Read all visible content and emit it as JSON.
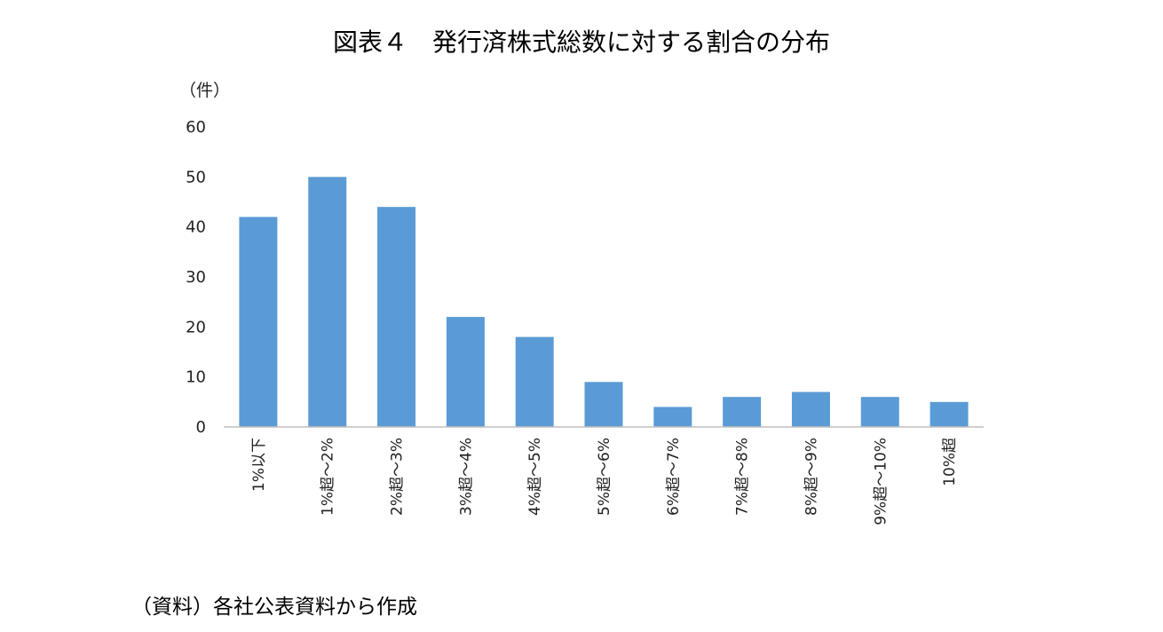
{
  "chart_data": {
    "type": "bar",
    "title": "図表４　発行済株式総数に対する割合の分布",
    "ylabel": "（件）",
    "xlabel": "",
    "categories": [
      "1%以下",
      "1%超～2%",
      "2%超～3%",
      "3%超～4%",
      "4%超～5%",
      "5%超～6%",
      "6%超～7%",
      "7%超～8%",
      "8%超～9%",
      "9%超～10%",
      "10%超"
    ],
    "values": [
      42,
      50,
      44,
      22,
      18,
      9,
      4,
      6,
      7,
      6,
      5
    ],
    "ylim": [
      0,
      60
    ],
    "yticks": [
      0,
      10,
      20,
      30,
      40,
      50,
      60
    ],
    "grid": false,
    "bar_color": "#5b9bd5"
  },
  "source_note": "（資料）各社公表資料から作成"
}
